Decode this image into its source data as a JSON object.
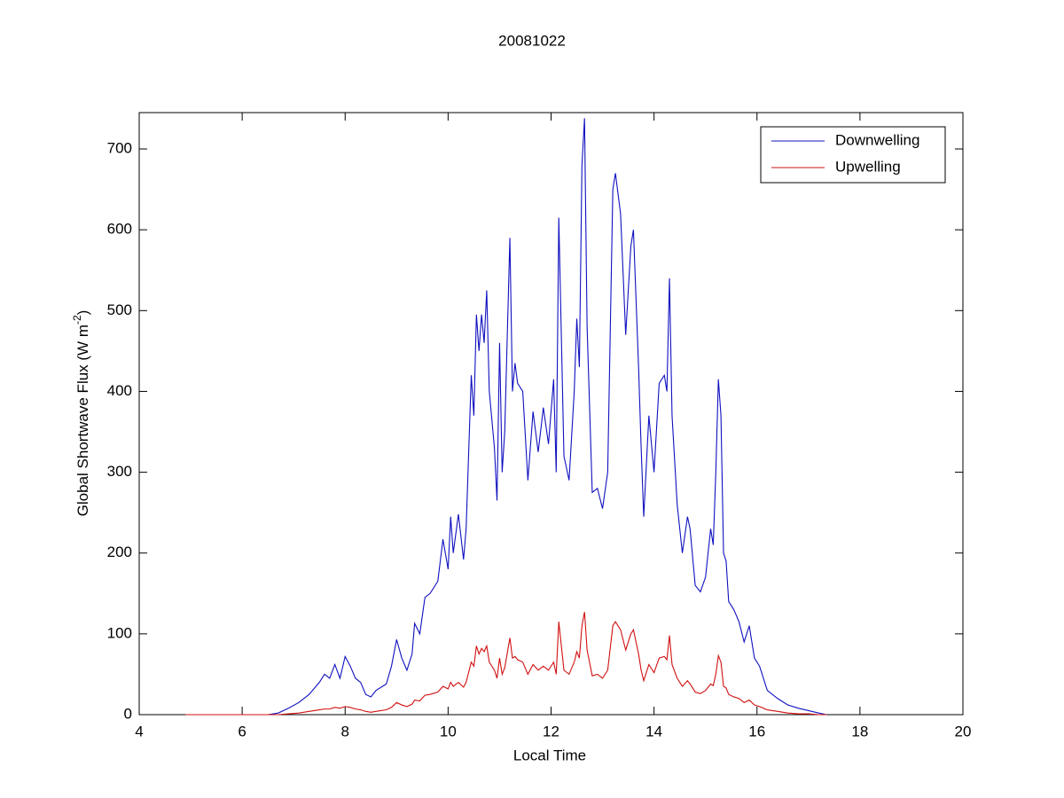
{
  "chart_data": {
    "type": "line",
    "title": "20081022",
    "xlabel": "Local Time",
    "ylabel": {
      "text": "Global Shortwave Flux (W m",
      "sup": "-2",
      "end": ")"
    },
    "xlim": [
      4,
      20
    ],
    "xticks": [
      4,
      6,
      8,
      10,
      12,
      14,
      16,
      18,
      20
    ],
    "ylim": [
      0,
      745
    ],
    "yticks": [
      0,
      100,
      200,
      300,
      400,
      500,
      600,
      700
    ],
    "legend": "northeast",
    "grid": false,
    "x": [
      4.9,
      5.5,
      6.0,
      6.5,
      6.7,
      6.9,
      7.1,
      7.3,
      7.5,
      7.6,
      7.7,
      7.8,
      7.9,
      8.0,
      8.1,
      8.2,
      8.3,
      8.4,
      8.5,
      8.6,
      8.8,
      8.9,
      9.0,
      9.1,
      9.2,
      9.3,
      9.35,
      9.45,
      9.55,
      9.65,
      9.8,
      9.9,
      10.0,
      10.05,
      10.1,
      10.2,
      10.3,
      10.35,
      10.45,
      10.5,
      10.55,
      10.6,
      10.65,
      10.7,
      10.75,
      10.8,
      10.9,
      10.95,
      11.0,
      11.05,
      11.1,
      11.2,
      11.25,
      11.3,
      11.35,
      11.45,
      11.55,
      11.65,
      11.75,
      11.85,
      11.95,
      12.05,
      12.1,
      12.15,
      12.25,
      12.35,
      12.45,
      12.5,
      12.55,
      12.6,
      12.65,
      12.7,
      12.8,
      12.9,
      13.0,
      13.1,
      13.2,
      13.25,
      13.35,
      13.45,
      13.55,
      13.6,
      13.7,
      13.75,
      13.8,
      13.9,
      14.0,
      14.1,
      14.2,
      14.25,
      14.3,
      14.35,
      14.45,
      14.55,
      14.65,
      14.7,
      14.8,
      14.9,
      15.0,
      15.1,
      15.15,
      15.2,
      15.25,
      15.3,
      15.35,
      15.4,
      15.45,
      15.55,
      15.65,
      15.75,
      15.85,
      15.95,
      16.05,
      16.2,
      16.4,
      16.6,
      16.8,
      17.0,
      17.2,
      17.35
    ],
    "series": [
      {
        "name": "Downwelling",
        "color": "#1010c0",
        "values": [
          0,
          0,
          0,
          0,
          2,
          8,
          15,
          25,
          40,
          50,
          45,
          62,
          45,
          72,
          60,
          45,
          40,
          25,
          22,
          30,
          38,
          60,
          93,
          70,
          55,
          75,
          113,
          100,
          145,
          150,
          165,
          217,
          180,
          245,
          200,
          248,
          192,
          230,
          420,
          370,
          495,
          450,
          495,
          460,
          525,
          400,
          330,
          265,
          460,
          300,
          350,
          590,
          400,
          435,
          410,
          400,
          290,
          375,
          325,
          380,
          335,
          415,
          300,
          615,
          320,
          290,
          400,
          490,
          430,
          680,
          738,
          480,
          275,
          280,
          255,
          300,
          650,
          670,
          620,
          470,
          580,
          600,
          430,
          330,
          245,
          370,
          300,
          410,
          420,
          400,
          540,
          370,
          260,
          200,
          245,
          230,
          160,
          152,
          170,
          230,
          210,
          300,
          415,
          370,
          200,
          190,
          140,
          130,
          115,
          90,
          110,
          70,
          60,
          30,
          20,
          12,
          8,
          5,
          2,
          0
        ]
      },
      {
        "name": "Upwelling",
        "color": "#d01010",
        "values": [
          0,
          0,
          0,
          0,
          0,
          1,
          2,
          4,
          6,
          7,
          7,
          9,
          8,
          10,
          9,
          7,
          6,
          4,
          3,
          4,
          6,
          9,
          15,
          12,
          10,
          13,
          18,
          17,
          24,
          25,
          28,
          35,
          32,
          40,
          35,
          40,
          34,
          40,
          65,
          60,
          85,
          75,
          82,
          78,
          85,
          65,
          55,
          45,
          70,
          50,
          58,
          95,
          70,
          72,
          68,
          65,
          50,
          62,
          55,
          60,
          55,
          65,
          50,
          115,
          55,
          50,
          65,
          78,
          70,
          110,
          127,
          80,
          48,
          50,
          45,
          55,
          110,
          115,
          105,
          80,
          100,
          105,
          75,
          55,
          42,
          62,
          52,
          70,
          72,
          68,
          98,
          62,
          45,
          35,
          42,
          38,
          28,
          26,
          30,
          38,
          36,
          50,
          73,
          65,
          35,
          33,
          25,
          22,
          20,
          15,
          18,
          12,
          10,
          6,
          4,
          2,
          1,
          1,
          0,
          0
        ]
      }
    ]
  }
}
